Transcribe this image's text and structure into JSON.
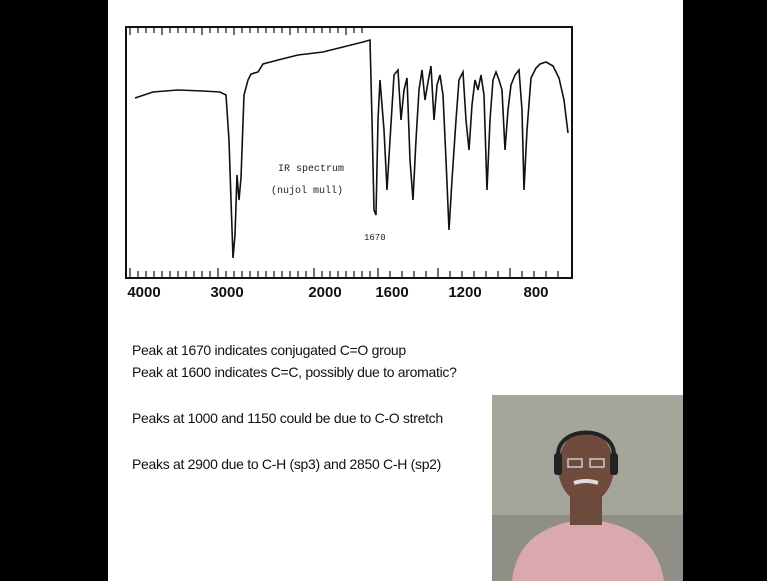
{
  "spectrum": {
    "annotation_title": "IR spectrum",
    "annotation_subtitle": "(nujol  mull)",
    "peak_label": "1670",
    "x_tick_labels": [
      "4000",
      "3000",
      "2000",
      "1600",
      "1200",
      "800"
    ]
  },
  "slide": {
    "lines": [
      "Peak at 1670 indicates conjugated C=O group",
      "Peak at 1600 indicates C=C,  possibly due to aromatic?",
      "Peaks at 1000 and 1150 could be due to C-O stretch",
      "Peaks at 2900 due to C-H (sp3) and 2850 C-H (sp2)"
    ]
  }
}
